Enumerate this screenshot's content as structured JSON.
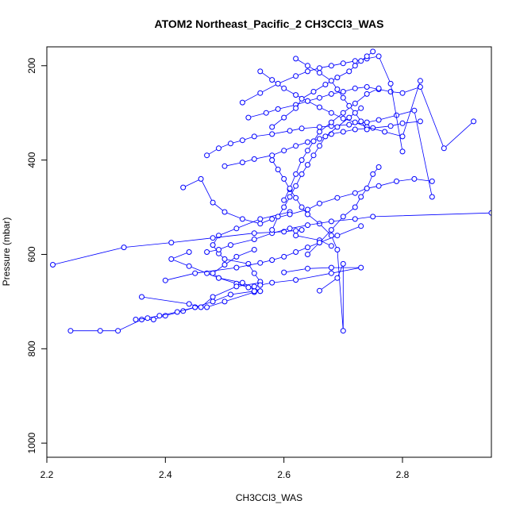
{
  "chart_data": {
    "type": "line",
    "title": "ATOM2 Northeast_Pacific_2 CH3CCl3_WAS",
    "xlabel": "CH3CCl3_WAS",
    "ylabel": "Pressure (mbar)",
    "xlim": [
      2.2,
      2.95
    ],
    "ylim": [
      1030,
      160
    ],
    "y_reversed": true,
    "xticks": [
      2.2,
      2.4,
      2.6,
      2.8
    ],
    "xtick_labels": [
      "2.2",
      "2.4",
      "2.6",
      "2.8"
    ],
    "yticks": [
      200,
      400,
      600,
      800,
      1000
    ],
    "ytick_labels": [
      "200",
      "400",
      "600",
      "800",
      "1000"
    ],
    "grid": false,
    "series_color": "#0000ff",
    "series": [
      {
        "x": [
          2.24,
          2.29,
          2.32,
          2.36,
          2.38,
          2.4,
          2.43,
          2.45,
          2.47,
          2.5,
          2.55,
          2.56,
          2.53,
          2.49,
          2.47,
          2.44,
          2.41,
          2.44
        ],
        "y": [
          762,
          762,
          762,
          738,
          738,
          730,
          720,
          712,
          712,
          700,
          680,
          678,
          660,
          650,
          640,
          625,
          610,
          595
        ]
      },
      {
        "x": [
          2.35,
          2.37,
          2.39,
          2.42,
          2.45,
          2.48,
          2.51,
          2.55,
          2.56,
          2.52,
          2.49,
          2.48,
          2.5,
          2.52,
          2.55
        ],
        "y": [
          738,
          735,
          730,
          722,
          712,
          700,
          685,
          678,
          678,
          662,
          650,
          640,
          622,
          605,
          590
        ]
      },
      {
        "x": [
          2.36,
          2.44,
          2.46,
          2.48,
          2.52,
          2.56,
          2.56,
          2.55,
          2.54,
          2.5,
          2.49,
          2.48,
          2.49,
          2.52,
          2.56,
          2.61
        ],
        "y": [
          690,
          705,
          712,
          690,
          668,
          660,
          658,
          640,
          620,
          610,
          598,
          580,
          560,
          545,
          525,
          510
        ]
      },
      {
        "x": [
          2.21,
          2.33,
          2.41,
          2.48,
          2.55,
          2.6,
          2.63,
          2.62,
          2.62,
          2.66,
          2.68
        ],
        "y": [
          622,
          585,
          575,
          565,
          555,
          552,
          548,
          550,
          560,
          570,
          582
        ]
      },
      {
        "x": [
          2.4,
          2.45,
          2.52,
          2.56,
          2.58,
          2.6,
          2.62,
          2.64,
          2.66,
          2.69,
          2.73
        ],
        "y": [
          655,
          640,
          628,
          618,
          612,
          605,
          595,
          585,
          575,
          560,
          540
        ]
      },
      {
        "x": [
          2.66,
          2.69,
          2.7,
          2.7,
          2.69,
          2.68,
          2.66,
          2.64,
          2.63,
          2.62,
          2.61,
          2.6,
          2.59,
          2.58
        ],
        "y": [
          677,
          650,
          620,
          762,
          590,
          560,
          535,
          515,
          500,
          480,
          462,
          440,
          420,
          400
        ]
      },
      {
        "x": [
          2.47,
          2.49,
          2.51,
          2.55,
          2.58,
          2.61,
          2.64,
          2.68,
          2.72,
          2.75,
          2.95
        ],
        "y": [
          595,
          590,
          580,
          568,
          555,
          545,
          538,
          530,
          525,
          520,
          512
        ]
      },
      {
        "x": [
          2.6,
          2.64,
          2.68,
          2.73,
          2.68,
          2.62,
          2.58,
          2.56,
          2.55,
          2.54
        ],
        "y": [
          638,
          630,
          628,
          628,
          640,
          654,
          660,
          665,
          668,
          670
        ]
      },
      {
        "x": [
          2.43,
          2.46,
          2.48,
          2.5,
          2.53,
          2.56,
          2.58,
          2.61,
          2.64,
          2.66,
          2.69,
          2.72,
          2.74,
          2.76,
          2.79,
          2.82,
          2.85
        ],
        "y": [
          458,
          440,
          490,
          510,
          525,
          535,
          525,
          515,
          505,
          492,
          480,
          470,
          460,
          455,
          445,
          440,
          445
        ]
      },
      {
        "x": [
          2.47,
          2.49,
          2.51,
          2.53,
          2.55,
          2.58,
          2.61,
          2.63,
          2.66,
          2.68,
          2.71,
          2.74,
          2.76,
          2.79,
          2.82,
          2.85
        ],
        "y": [
          390,
          375,
          365,
          358,
          350,
          345,
          338,
          333,
          330,
          328,
          325,
          320,
          315,
          305,
          295,
          478
        ]
      },
      {
        "x": [
          2.5,
          2.53,
          2.55,
          2.58,
          2.6,
          2.62,
          2.64,
          2.66,
          2.68,
          2.7,
          2.72,
          2.75,
          2.78,
          2.8,
          2.83
        ],
        "y": [
          413,
          405,
          398,
          390,
          380,
          370,
          362,
          355,
          345,
          340,
          335,
          332,
          328,
          322,
          318
        ]
      },
      {
        "x": [
          2.54,
          2.57,
          2.59,
          2.62,
          2.64,
          2.66,
          2.68,
          2.7,
          2.72,
          2.74,
          2.76,
          2.78,
          2.8,
          2.83,
          2.87,
          2.92
        ],
        "y": [
          310,
          300,
          292,
          283,
          275,
          268,
          260,
          255,
          248,
          245,
          250,
          255,
          258,
          245,
          375,
          318
        ]
      },
      {
        "x": [
          2.56,
          2.58,
          2.6,
          2.62,
          2.64,
          2.66,
          2.68,
          2.7,
          2.72,
          2.74,
          2.77,
          2.8,
          2.83
        ],
        "y": [
          212,
          230,
          248,
          262,
          275,
          288,
          300,
          312,
          320,
          330,
          340,
          350,
          232
        ]
      },
      {
        "x": [
          2.53,
          2.56,
          2.59,
          2.62,
          2.64,
          2.66,
          2.68,
          2.7,
          2.72,
          2.74,
          2.76,
          2.78,
          2.8
        ],
        "y": [
          278,
          258,
          238,
          222,
          212,
          205,
          200,
          195,
          190,
          185,
          180,
          238,
          382
        ]
      },
      {
        "x": [
          2.58,
          2.6,
          2.62,
          2.63,
          2.65,
          2.67,
          2.69,
          2.71,
          2.72,
          2.73,
          2.74,
          2.75
        ],
        "y": [
          330,
          310,
          290,
          270,
          255,
          240,
          225,
          212,
          200,
          190,
          180,
          170
        ]
      },
      {
        "x": [
          2.6,
          2.61,
          2.62,
          2.63,
          2.64,
          2.65,
          2.66,
          2.68,
          2.7,
          2.72,
          2.74,
          2.76
        ],
        "y": [
          485,
          460,
          430,
          400,
          380,
          360,
          340,
          320,
          300,
          280,
          260,
          248
        ]
      },
      {
        "x": [
          2.58,
          2.59,
          2.6,
          2.61,
          2.62,
          2.63,
          2.64,
          2.65,
          2.66,
          2.67,
          2.69,
          2.71,
          2.73
        ],
        "y": [
          548,
          520,
          500,
          478,
          455,
          430,
          410,
          390,
          370,
          350,
          330,
          310,
          290
        ]
      },
      {
        "x": [
          2.64,
          2.66,
          2.68,
          2.7,
          2.72,
          2.73,
          2.74,
          2.75,
          2.76
        ],
        "y": [
          600,
          575,
          548,
          520,
          500,
          478,
          460,
          430,
          415
        ]
      },
      {
        "x": [
          2.62,
          2.64,
          2.66,
          2.68,
          2.69,
          2.7,
          2.71,
          2.72,
          2.73,
          2.74
        ],
        "y": [
          185,
          200,
          215,
          232,
          250,
          268,
          285,
          300,
          318,
          335
        ]
      }
    ]
  }
}
